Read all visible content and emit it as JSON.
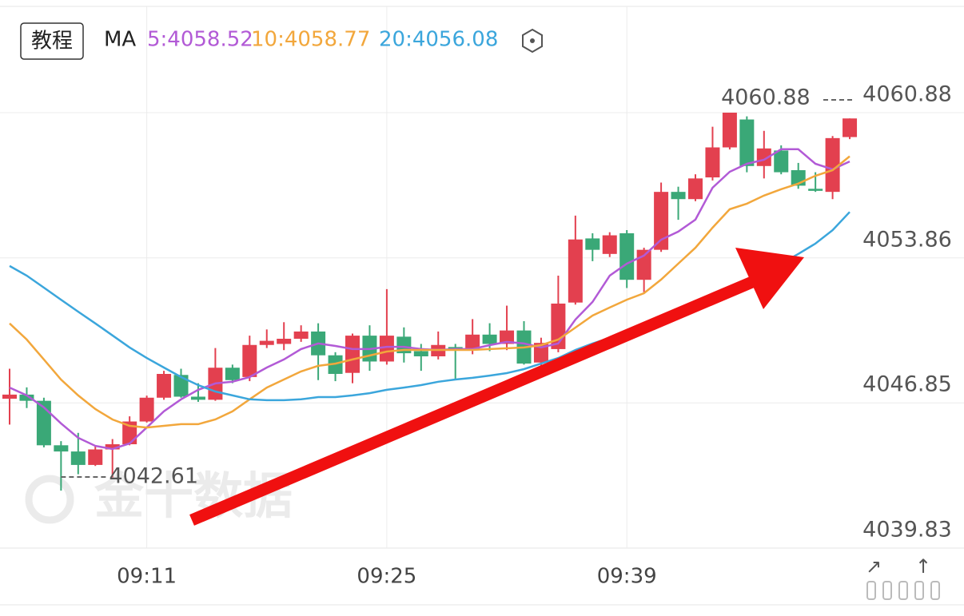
{
  "header": {
    "tutorial_button": "教程",
    "ma_label": "MA"
  },
  "chart_data": {
    "type": "candlestick",
    "categories": [
      null,
      null,
      null,
      null,
      null,
      null,
      null,
      null,
      "09:11",
      null,
      null,
      null,
      null,
      null,
      null,
      null,
      null,
      null,
      null,
      null,
      null,
      null,
      "09:25",
      null,
      null,
      null,
      null,
      null,
      null,
      null,
      null,
      null,
      null,
      null,
      null,
      null,
      "09:39",
      null,
      null,
      null,
      null,
      null,
      null,
      null,
      null,
      null,
      null,
      null,
      null,
      null
    ],
    "open": [
      4047.05,
      4047.25,
      4046.95,
      4044.8,
      4044.5,
      4043.85,
      4044.6,
      4044.85,
      4045.95,
      4047.1,
      4048.2,
      4047.15,
      4047.0,
      4048.55,
      4048.1,
      4049.65,
      4049.7,
      4049.95,
      4050.3,
      4049.15,
      4048.3,
      4050.1,
      4048.85,
      4050.05,
      4049.35,
      4049.1,
      4049.55,
      4049.45,
      4050.15,
      4049.7,
      4050.35,
      4048.8,
      4049.45,
      4051.7,
      4054.8,
      4054.05,
      4055.05,
      4052.8,
      4054.25,
      4057.05,
      4056.7,
      4057.75,
      4059.2,
      4060.55,
      4058.3,
      4059.05,
      4058.1,
      4057.2,
      4057.05,
      4059.7
    ],
    "high": [
      4048.5,
      4047.6,
      4047.1,
      4045.0,
      4045.4,
      4044.8,
      4045.1,
      4046.2,
      4047.2,
      4048.4,
      4048.5,
      4047.8,
      4049.5,
      4048.7,
      4050.1,
      4050.4,
      4050.75,
      4050.6,
      4050.7,
      4049.3,
      4050.2,
      4050.6,
      4052.35,
      4050.5,
      4049.7,
      4050.3,
      4049.7,
      4050.9,
      4050.7,
      4051.55,
      4050.8,
      4050.0,
      4053.0,
      4055.9,
      4055.05,
      4055.1,
      4055.2,
      4054.35,
      4057.5,
      4057.3,
      4057.9,
      4060.2,
      4060.88,
      4060.7,
      4060.0,
      4059.3,
      4058.45,
      4058.0,
      4059.75,
      4060.6
    ],
    "low": [
      4045.8,
      4046.6,
      4044.7,
      4042.61,
      4043.4,
      4043.8,
      4043.25,
      4044.8,
      4045.9,
      4047.0,
      4047.1,
      4046.9,
      4046.95,
      4047.8,
      4047.9,
      4049.5,
      4049.4,
      4049.8,
      4047.95,
      4047.9,
      4047.8,
      4048.4,
      4048.7,
      4048.8,
      4048.4,
      4048.95,
      4048.0,
      4049.2,
      4049.35,
      4049.4,
      4048.7,
      4048.6,
      4049.3,
      4051.6,
      4053.7,
      4053.9,
      4052.4,
      4052.2,
      4054.15,
      4055.7,
      4056.6,
      4057.6,
      4059.1,
      4058.0,
      4057.7,
      4057.9,
      4057.2,
      4057.05,
      4056.7,
      4059.6
    ],
    "close": [
      4047.25,
      4046.95,
      4044.8,
      4044.5,
      4043.85,
      4044.6,
      4044.85,
      4045.95,
      4047.1,
      4048.25,
      4047.15,
      4047.0,
      4048.55,
      4047.95,
      4049.65,
      4049.85,
      4049.95,
      4050.3,
      4049.15,
      4048.25,
      4050.1,
      4048.85,
      4050.1,
      4049.25,
      4049.1,
      4049.65,
      4049.45,
      4050.15,
      4049.7,
      4050.35,
      4048.75,
      4049.75,
      4051.65,
      4054.75,
      4054.25,
      4054.95,
      4052.8,
      4054.25,
      4057.05,
      4056.7,
      4057.7,
      4059.2,
      4060.88,
      4058.3,
      4059.15,
      4058.0,
      4057.35,
      4057.1,
      4059.65,
      4060.6
    ],
    "up_color": "#e3404f",
    "down_color": "#3aa877",
    "series": [
      {
        "name": "5:4058.52",
        "color": "#b25ad6",
        "values": [
          4047.59,
          4047.21,
          4046.63,
          4045.86,
          4045.16,
          4044.77,
          4044.62,
          4044.89,
          4045.66,
          4046.44,
          4047.02,
          4047.48,
          4047.79,
          4047.87,
          4048.1,
          4048.56,
          4048.95,
          4049.45,
          4049.72,
          4049.6,
          4049.45,
          4049.45,
          4049.56,
          4049.56,
          4049.45,
          4049.41,
          4049.45,
          4049.45,
          4049.64,
          4049.8,
          4049.72,
          4049.53,
          4049.72,
          4050.88,
          4051.73,
          4053.0,
          4053.58,
          4053.97,
          4054.74,
          4055.13,
          4055.71,
          4057.25,
          4058.02,
          4058.41,
          4058.6,
          4059.11,
          4059.11,
          4058.41,
          4058.14,
          4058.52
        ]
      },
      {
        "name": "10:4058.77",
        "color": "#f2a73c",
        "values": [
          4050.69,
          4049.91,
          4048.95,
          4047.98,
          4047.21,
          4046.55,
          4046.05,
          4045.74,
          4045.66,
          4045.74,
          4045.82,
          4045.82,
          4046.05,
          4046.44,
          4047.02,
          4047.59,
          4047.98,
          4048.37,
          4048.64,
          4048.75,
          4048.95,
          4049.14,
          4049.33,
          4049.41,
          4049.41,
          4049.41,
          4049.41,
          4049.41,
          4049.45,
          4049.49,
          4049.53,
          4049.64,
          4049.91,
          4050.49,
          4051.07,
          4051.46,
          4051.84,
          4052.15,
          4052.81,
          4053.58,
          4054.35,
          4055.32,
          4056.21,
          4056.48,
          4056.87,
          4057.18,
          4057.45,
          4057.83,
          4058.1,
          4058.77
        ]
      },
      {
        "name": "20:4056.08",
        "color": "#3ba6dc",
        "values": [
          4053.47,
          4053.0,
          4052.42,
          4051.84,
          4051.26,
          4050.69,
          4050.11,
          4049.53,
          4049.02,
          4048.56,
          4048.1,
          4047.71,
          4047.4,
          4047.21,
          4047.02,
          4046.98,
          4046.98,
          4047.02,
          4047.13,
          4047.13,
          4047.21,
          4047.32,
          4047.48,
          4047.59,
          4047.71,
          4047.87,
          4047.98,
          4048.06,
          4048.17,
          4048.29,
          4048.48,
          4048.75,
          4049.02,
          4049.41,
          4049.72,
          4049.99,
          4050.3,
          4050.49,
          4050.88,
          4051.26,
          4051.65,
          4052.04,
          4052.42,
          4052.73,
          4053.08,
          4053.58,
          4054.05,
          4054.55,
          4055.2,
          4056.08
        ]
      }
    ],
    "ylim": [
      4039.83,
      4060.88
    ],
    "yticks": [
      4060.88,
      4053.86,
      4046.85,
      4039.83
    ],
    "grid": true,
    "high_marker": 4060.88,
    "low_marker": 4042.61,
    "watermark": "金十数据"
  }
}
